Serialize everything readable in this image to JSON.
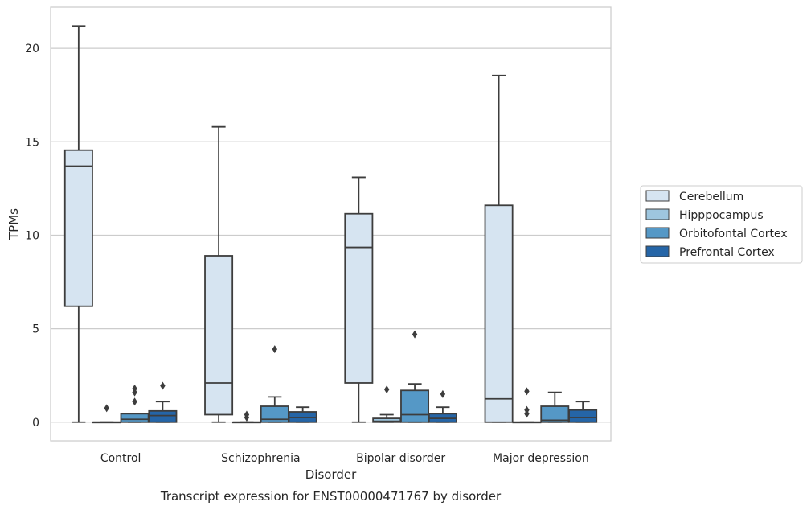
{
  "chart_data": {
    "type": "box",
    "caption": "Transcript expression for ENST00000471767 by disorder",
    "xlabel": "Disorder",
    "ylabel": "TPMs",
    "ylim": [
      -1,
      22.2
    ],
    "yticks": [
      0,
      5,
      10,
      15,
      20
    ],
    "grid": true,
    "legend_position": "right",
    "categories": [
      "Control",
      "Schizophrenia",
      "Bipolar disorder",
      "Major depression"
    ],
    "series": [
      {
        "name": "Cerebellum",
        "color": "#d6e4f1",
        "boxes": [
          {
            "whislo": 0,
            "q1": 6.2,
            "med": 13.7,
            "q3": 14.55,
            "whishi": 21.2,
            "fliers": []
          },
          {
            "whislo": 0,
            "q1": 0.4,
            "med": 2.1,
            "q3": 8.9,
            "whishi": 15.8,
            "fliers": []
          },
          {
            "whislo": 0,
            "q1": 2.1,
            "med": 9.35,
            "q3": 11.15,
            "whishi": 13.1,
            "fliers": []
          },
          {
            "whislo": 0,
            "q1": 0,
            "med": 1.25,
            "q3": 11.6,
            "whishi": 18.55,
            "fliers": []
          }
        ]
      },
      {
        "name": "Hipppocampus",
        "color": "#9ec6df",
        "boxes": [
          {
            "whislo": 0,
            "q1": 0,
            "med": 0,
            "q3": 0,
            "whishi": 0,
            "fliers": [
              0.75
            ]
          },
          {
            "whislo": 0,
            "q1": 0,
            "med": 0,
            "q3": 0,
            "whishi": 0,
            "fliers": [
              0.25,
              0.4
            ]
          },
          {
            "whislo": 0,
            "q1": 0,
            "med": 0.05,
            "q3": 0.2,
            "whishi": 0.4,
            "fliers": [
              1.75
            ]
          },
          {
            "whislo": 0,
            "q1": 0,
            "med": 0,
            "q3": 0,
            "whishi": 0,
            "fliers": [
              0.45,
              0.65,
              1.65
            ]
          }
        ]
      },
      {
        "name": "Orbitofontal Cortex",
        "color": "#5598c6",
        "boxes": [
          {
            "whislo": 0,
            "q1": 0,
            "med": 0.15,
            "q3": 0.45,
            "whishi": 0.45,
            "fliers": [
              1.1,
              1.6,
              1.8
            ]
          },
          {
            "whislo": 0,
            "q1": 0,
            "med": 0.15,
            "q3": 0.85,
            "whishi": 1.35,
            "fliers": [
              3.9
            ]
          },
          {
            "whislo": 0,
            "q1": 0,
            "med": 0.4,
            "q3": 1.7,
            "whishi": 2.05,
            "fliers": [
              4.7
            ]
          },
          {
            "whislo": 0,
            "q1": 0,
            "med": 0.1,
            "q3": 0.85,
            "whishi": 1.6,
            "fliers": []
          }
        ]
      },
      {
        "name": "Prefrontal Cortex",
        "color": "#2565a7",
        "boxes": [
          {
            "whislo": 0,
            "q1": 0,
            "med": 0.35,
            "q3": 0.6,
            "whishi": 1.1,
            "fliers": [
              1.95
            ]
          },
          {
            "whislo": 0,
            "q1": 0,
            "med": 0.25,
            "q3": 0.55,
            "whishi": 0.8,
            "fliers": []
          },
          {
            "whislo": 0,
            "q1": 0,
            "med": 0.2,
            "q3": 0.45,
            "whishi": 0.8,
            "fliers": [
              1.5
            ]
          },
          {
            "whislo": 0,
            "q1": 0,
            "med": 0.25,
            "q3": 0.65,
            "whishi": 1.1,
            "fliers": []
          }
        ]
      }
    ]
  }
}
